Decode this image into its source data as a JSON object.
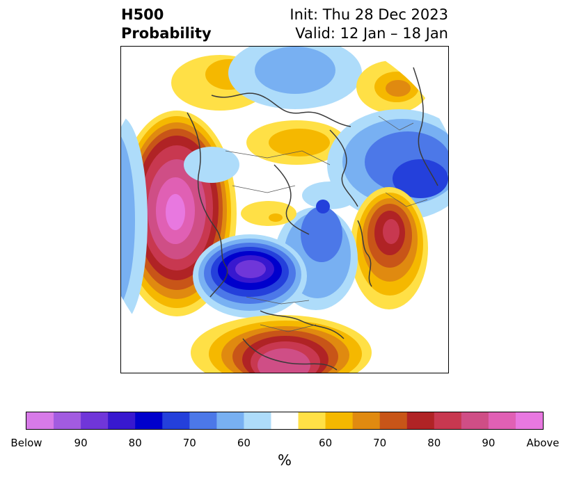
{
  "title": {
    "left_line1": "H500",
    "left_line2": "Probability",
    "right_line1": "Init: Thu 28 Dec 2023",
    "right_line2": "Valid: 12 Jan – 18 Jan"
  },
  "colorbar": {
    "unit": "%",
    "bins": [
      "#d77ae8",
      "#a25be0",
      "#7036d9",
      "#3818cf",
      "#0000cc",
      "#2440db",
      "#4c78e8",
      "#78b0f2",
      "#aedcfa",
      "#ffffff",
      "#ffe046",
      "#f5b800",
      "#e08a10",
      "#c85518",
      "#b02325",
      "#c83850",
      "#cf4e86",
      "#e060b4",
      "#e878e0"
    ],
    "tick_labels": [
      "Below",
      "90",
      "80",
      "70",
      "60",
      "60",
      "70",
      "80",
      "90",
      "Above"
    ]
  },
  "map": {
    "projection": "polar stereographic, North Pole",
    "field": "H500 probability anomalies",
    "features": [
      {
        "name": "gulf-of-alaska-above",
        "sign": "above",
        "peak_category": "Above"
      },
      {
        "name": "north-atlantic-above",
        "sign": "above",
        "peak_category": "80"
      },
      {
        "name": "mexico-gulf-above",
        "sign": "above",
        "peak_category": "90"
      },
      {
        "name": "scandinavia-above",
        "sign": "above",
        "peak_category": "70"
      },
      {
        "name": "siberia-above",
        "sign": "above",
        "peak_category": "60"
      },
      {
        "name": "central-north-america-below",
        "sign": "below",
        "peak_category": "Below"
      },
      {
        "name": "western-russia-below",
        "sign": "below",
        "peak_category": "80"
      },
      {
        "name": "north-atlantic-greenland-below",
        "sign": "below",
        "peak_category": "70"
      }
    ]
  }
}
